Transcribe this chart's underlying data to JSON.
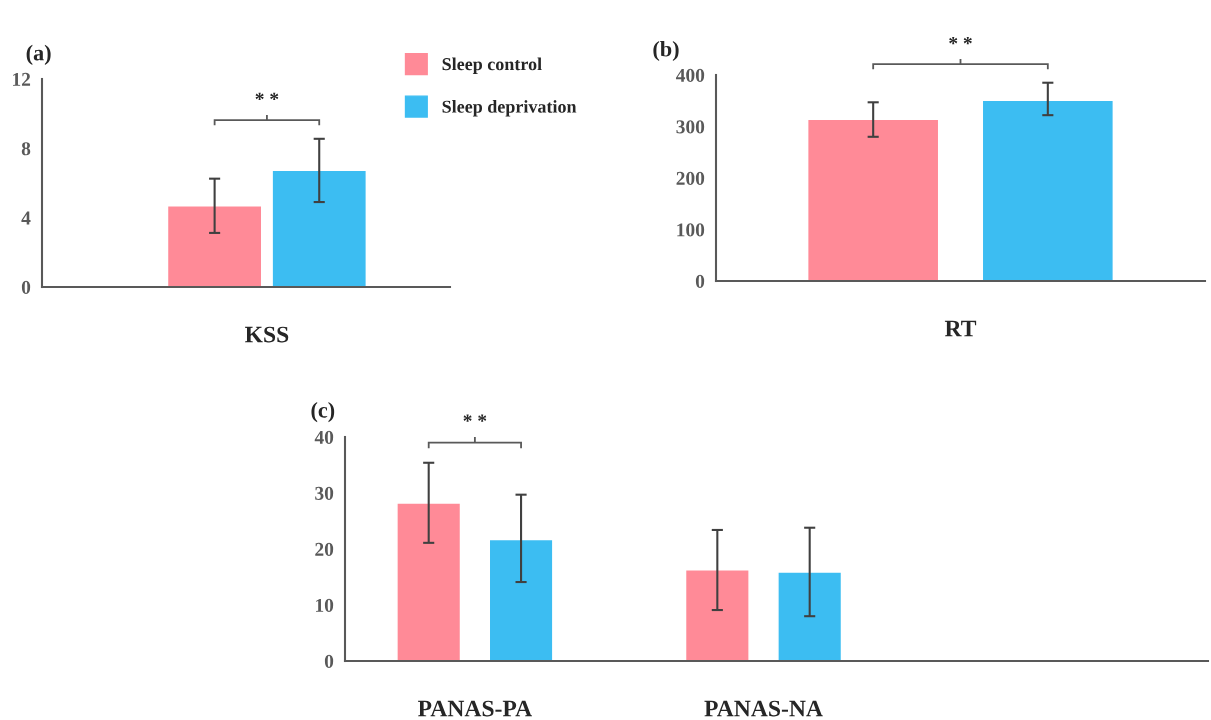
{
  "chart_data": [
    {
      "type": "bar",
      "title": "(a)",
      "categories": [
        "KSS"
      ],
      "series": [
        {
          "name": "Sleep control",
          "color": "#ff8a97",
          "values": [
            4.69
          ],
          "errors": [
            [
              3.12,
              6.25
            ]
          ]
        },
        {
          "name": "Sleep deprivation",
          "color": "#3cbdf2",
          "values": [
            6.73
          ],
          "errors": [
            [
              4.9,
              8.55
            ]
          ]
        }
      ],
      "ylim": [
        0,
        12
      ],
      "yticks": [
        0,
        4,
        8,
        12
      ],
      "grid": false,
      "legend": "top right",
      "annotations": [
        "* *"
      ]
    },
    {
      "type": "bar",
      "title": "(b)",
      "categories": [
        "RT"
      ],
      "series": [
        {
          "color": "#ff8a97",
          "values": [
            314
          ],
          "errors": [
            [
              280,
              347
            ]
          ]
        },
        {
          "color": "#3cbdf2",
          "values": [
            351
          ],
          "errors": [
            [
              322,
              385
            ]
          ]
        }
      ],
      "ylim": [
        0,
        400
      ],
      "yticks": [
        0,
        100,
        200,
        300,
        400
      ],
      "grid": false,
      "legend": false,
      "annotations": [
        "* *"
      ]
    },
    {
      "type": "bar",
      "title": "(c)",
      "categories": [
        "PANAS-PA",
        "PANAS-NA"
      ],
      "series": [
        {
          "color": "#ff8a97",
          "values": [
            28.2,
            16.3
          ],
          "errors": [
            [
              21.1,
              35.4
            ],
            [
              9.1,
              23.4
            ]
          ]
        },
        {
          "color": "#3cbdf2",
          "values": [
            21.7,
            15.9
          ],
          "errors": [
            [
              14.1,
              29.7
            ],
            [
              8.0,
              23.8
            ]
          ]
        }
      ],
      "ylim": [
        0,
        40
      ],
      "yticks": [
        0,
        10,
        20,
        30,
        40
      ],
      "grid": false,
      "legend": false,
      "annotations": [
        "* *"
      ]
    }
  ]
}
